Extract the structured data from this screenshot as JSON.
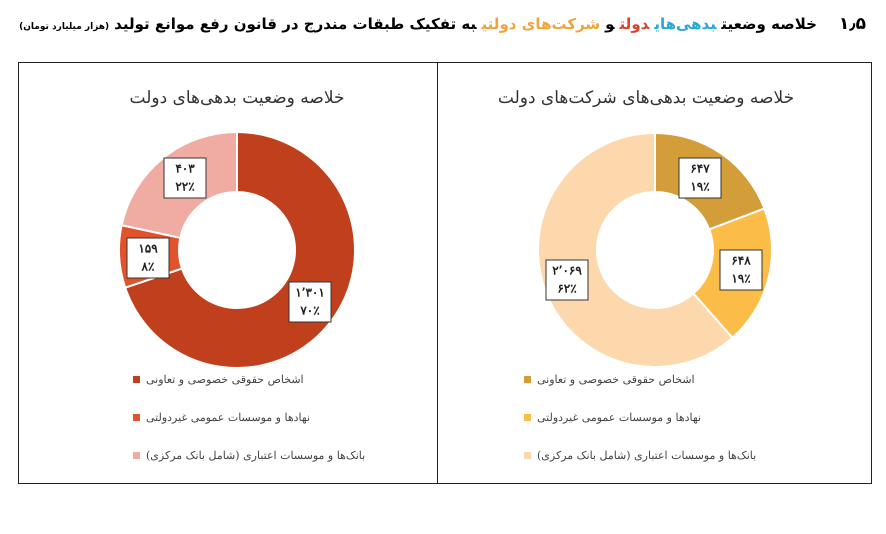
{
  "header": {
    "section_number": "۱٫۵",
    "title_parts": [
      "خلاصه وضعیت",
      "بدهی‌های",
      "دولت",
      "و",
      "شرکت‌های دولتی",
      "به تفکیک طبقات مندرج در قانون رفع موانع تولید"
    ],
    "unit": "(هزار میلیارد تومان)"
  },
  "chart_data": [
    {
      "type": "donut",
      "title": "خلاصه وضعیت بدهی‌های دولت",
      "categories": [
        "اشخاص حقوقی خصوصی و تعاونی",
        "نهادها و موسسات عمومی غیردولتی",
        "بانک‌ها و موسسات اعتباری (شامل بانک مرکزی)"
      ],
      "values": [
        1301,
        159,
        403
      ],
      "value_labels": [
        "۱٬۳۰۱",
        "۱۵۹",
        "۴۰۳"
      ],
      "percents": [
        70,
        8,
        22
      ],
      "percent_labels": [
        "۷۰٪",
        "۸٪",
        "۲۲٪"
      ],
      "colors": [
        "#c0401e",
        "#e2532c",
        "#f0aca3"
      ]
    },
    {
      "type": "donut",
      "title": "خلاصه وضعیت بدهی‌های شرکت‌های دولت",
      "categories": [
        "اشخاص حقوقی خصوصی و تعاونی",
        "نهادها و موسسات عمومی غیردولتی",
        "بانک‌ها و موسسات اعتباری (شامل بانک مرکزی)"
      ],
      "values": [
        647,
        648,
        2069
      ],
      "value_labels": [
        "۶۴۷",
        "۶۴۸",
        "۲٬۰۶۹"
      ],
      "percents": [
        19,
        19,
        62
      ],
      "percent_labels": [
        "۱۹٪",
        "۱۹٪",
        "۶۲٪"
      ],
      "colors": [
        "#d39d3a",
        "#fbbd48",
        "#fdd8ad"
      ]
    }
  ]
}
